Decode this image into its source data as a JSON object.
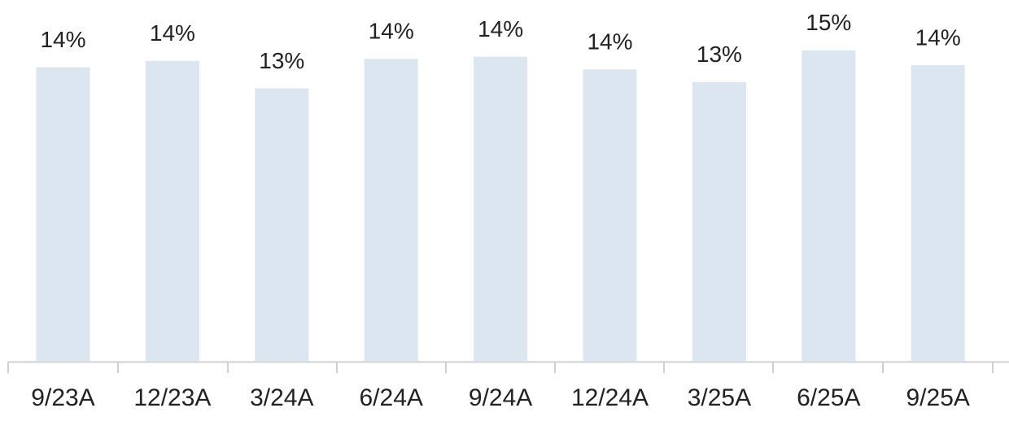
{
  "chart_data": {
    "type": "bar",
    "categories": [
      "9/23A",
      "12/23A",
      "3/24A",
      "6/24A",
      "9/24A",
      "12/24A",
      "3/25A",
      "6/25A",
      "9/25A"
    ],
    "values": [
      13.9,
      14.2,
      12.9,
      14.3,
      14.4,
      13.8,
      13.2,
      14.7,
      14.0
    ],
    "value_labels": [
      "14%",
      "14%",
      "13%",
      "14%",
      "14%",
      "14%",
      "13%",
      "15%",
      "14%"
    ],
    "color": "#dce6f1"
  }
}
